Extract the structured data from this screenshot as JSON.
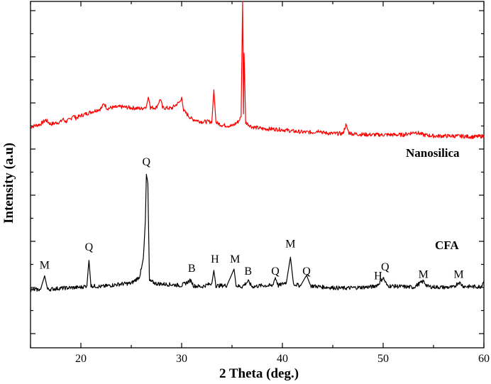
{
  "chart_data": {
    "type": "line",
    "title": "",
    "xlabel": "2 Theta (deg.)",
    "ylabel": "Intensity (a.u)",
    "xlim": [
      15,
      60
    ],
    "xticks": [
      20,
      30,
      40,
      50,
      60
    ],
    "ylim": [
      0,
      100
    ],
    "y_tick_labels_shown": false,
    "grid": false,
    "legend": "none; series named by text labels beside each trace",
    "series": [
      {
        "name": "Nanosilica",
        "color": "#ff0000",
        "baseline": 55,
        "points": [
          [
            15.0,
            58.7
          ],
          [
            16.0,
            59.6
          ],
          [
            16.5,
            61.0
          ],
          [
            17.0,
            59.6
          ],
          [
            18.0,
            60.4
          ],
          [
            18.2,
            61.3
          ],
          [
            18.5,
            60.4
          ],
          [
            19.0,
            61.3
          ],
          [
            19.2,
            62.6
          ],
          [
            19.5,
            61.6
          ],
          [
            20.0,
            62.4
          ],
          [
            21.0,
            63.6
          ],
          [
            22.0,
            64.7
          ],
          [
            22.3,
            66.4
          ],
          [
            22.6,
            64.8
          ],
          [
            23.0,
            65.0
          ],
          [
            24.0,
            65.3
          ],
          [
            25.0,
            65.0
          ],
          [
            26.0,
            64.7
          ],
          [
            26.5,
            65.4
          ],
          [
            26.7,
            68.5
          ],
          [
            26.9,
            65.0
          ],
          [
            27.5,
            65.1
          ],
          [
            27.9,
            68.0
          ],
          [
            28.1,
            65.0
          ],
          [
            29.0,
            64.8
          ],
          [
            29.8,
            66.9
          ],
          [
            30.0,
            68.5
          ],
          [
            30.2,
            64.0
          ],
          [
            31.0,
            61.3
          ],
          [
            32.0,
            60.4
          ],
          [
            33.0,
            60.4
          ],
          [
            33.2,
            70.9
          ],
          [
            33.4,
            60.1
          ],
          [
            34.0,
            59.3
          ],
          [
            35.0,
            59.0
          ],
          [
            35.6,
            60.4
          ],
          [
            35.9,
            62.0
          ],
          [
            36.05,
            100
          ],
          [
            36.15,
            63.0
          ],
          [
            36.2,
            83.0
          ],
          [
            36.35,
            60.2
          ],
          [
            36.6,
            59.6
          ],
          [
            37.0,
            58.7
          ],
          [
            38.0,
            58.1
          ],
          [
            39.0,
            58.0
          ],
          [
            40.0,
            57.8
          ],
          [
            41.0,
            57.3
          ],
          [
            42.0,
            57.0
          ],
          [
            43.0,
            56.9
          ],
          [
            43.7,
            57.6
          ],
          [
            44.0,
            56.8
          ],
          [
            45.0,
            56.5
          ],
          [
            46.0,
            56.5
          ],
          [
            46.3,
            59.3
          ],
          [
            46.6,
            56.8
          ],
          [
            47.0,
            56.4
          ],
          [
            48.0,
            56.2
          ],
          [
            49.0,
            56.1
          ],
          [
            50.0,
            56.1
          ],
          [
            51.0,
            56.1
          ],
          [
            52.0,
            56.1
          ],
          [
            53.2,
            57.0
          ],
          [
            54.0,
            56.1
          ],
          [
            55.0,
            55.7
          ],
          [
            56.0,
            55.7
          ],
          [
            57.0,
            55.7
          ],
          [
            58.0,
            55.6
          ],
          [
            59.0,
            55.4
          ],
          [
            60.0,
            55.7
          ]
        ]
      },
      {
        "name": "CFA",
        "color": "#000000",
        "baseline": 5,
        "points": [
          [
            15.0,
            5.0
          ],
          [
            16.0,
            5.2
          ],
          [
            16.4,
            9.7
          ],
          [
            16.7,
            5.2
          ],
          [
            18.0,
            5.6
          ],
          [
            20.0,
            5.9
          ],
          [
            20.6,
            6.4
          ],
          [
            20.8,
            14.8
          ],
          [
            21.0,
            6.4
          ],
          [
            22.0,
            6.1
          ],
          [
            24.0,
            7.0
          ],
          [
            25.0,
            7.2
          ],
          [
            25.8,
            9.3
          ],
          [
            26.0,
            11.9
          ],
          [
            26.2,
            15.5
          ],
          [
            26.4,
            28.0
          ],
          [
            26.5,
            42.9
          ],
          [
            26.65,
            40.0
          ],
          [
            26.8,
            8.0
          ],
          [
            27.5,
            7.1
          ],
          [
            29.0,
            6.8
          ],
          [
            30.0,
            6.5
          ],
          [
            30.9,
            8.2
          ],
          [
            31.2,
            6.4
          ],
          [
            32.0,
            6.1
          ],
          [
            33.0,
            7.2
          ],
          [
            33.2,
            11.5
          ],
          [
            33.4,
            6.4
          ],
          [
            34.5,
            6.5
          ],
          [
            35.2,
            11.9
          ],
          [
            35.4,
            6.4
          ],
          [
            36.0,
            6.1
          ],
          [
            36.6,
            7.9
          ],
          [
            37.0,
            6.1
          ],
          [
            38.0,
            6.5
          ],
          [
            39.0,
            6.4
          ],
          [
            39.3,
            9.1
          ],
          [
            39.6,
            6.4
          ],
          [
            40.4,
            7.6
          ],
          [
            40.8,
            15.8
          ],
          [
            41.1,
            7.0
          ],
          [
            41.8,
            6.4
          ],
          [
            42.4,
            9.9
          ],
          [
            42.8,
            6.4
          ],
          [
            44.0,
            6.0
          ],
          [
            46.0,
            5.6
          ],
          [
            48.0,
            5.9
          ],
          [
            49.0,
            6.1
          ],
          [
            49.5,
            6.8
          ],
          [
            50.0,
            9.1
          ],
          [
            50.4,
            6.4
          ],
          [
            52.0,
            6.1
          ],
          [
            53.0,
            5.9
          ],
          [
            54.0,
            7.9
          ],
          [
            54.4,
            6.2
          ],
          [
            55.0,
            6.0
          ],
          [
            56.0,
            5.9
          ],
          [
            57.0,
            5.9
          ],
          [
            57.5,
            7.6
          ],
          [
            58.0,
            6.2
          ],
          [
            59.0,
            6.1
          ],
          [
            59.7,
            6.1
          ],
          [
            60.0,
            8.1
          ]
        ]
      }
    ],
    "annotations": [
      {
        "text": "M",
        "x": 16.4,
        "y": 12
      },
      {
        "text": "Q",
        "x": 20.8,
        "y": 18
      },
      {
        "text": "Q",
        "x": 26.5,
        "y": 46
      },
      {
        "text": "B",
        "x": 31.0,
        "y": 11
      },
      {
        "text": "H",
        "x": 33.3,
        "y": 14
      },
      {
        "text": "M",
        "x": 35.3,
        "y": 14
      },
      {
        "text": "B",
        "x": 36.6,
        "y": 10
      },
      {
        "text": "Q",
        "x": 39.3,
        "y": 10
      },
      {
        "text": "M",
        "x": 40.8,
        "y": 19
      },
      {
        "text": "Q",
        "x": 42.4,
        "y": 10
      },
      {
        "text": "H",
        "x": 49.5,
        "y": 8.5
      },
      {
        "text": "Q",
        "x": 50.2,
        "y": 11.5
      },
      {
        "text": "M",
        "x": 54.0,
        "y": 9
      },
      {
        "text": "M",
        "x": 57.5,
        "y": 9
      }
    ]
  }
}
